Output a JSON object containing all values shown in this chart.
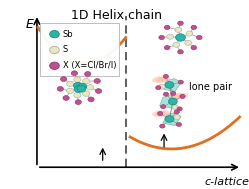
{
  "title": "1D Helix chain",
  "xlabel": "c-lattice",
  "ylabel": "E",
  "legend_items": [
    {
      "label": "Sb",
      "color": "#2ab5a5",
      "ec": "#1a8a80"
    },
    {
      "label": "S",
      "color": "#e8e8c0",
      "ec": "#aaaaaa"
    },
    {
      "label": "X (X=Cl/Br/I)",
      "color": "#c05090",
      "ec": "#903060"
    }
  ],
  "curve_color": "#e07020",
  "background_color": "#ffffff",
  "dashed_color": "#444444",
  "sb_color": "#2ab5a5",
  "sb_ec": "#1a8a80",
  "s_color": "#e8e8c0",
  "s_ec": "#aaaaaa",
  "x_color": "#c05090",
  "x_ec": "#903060",
  "lp_color": "#ffbbaa",
  "poly_color": "#80d0c8"
}
